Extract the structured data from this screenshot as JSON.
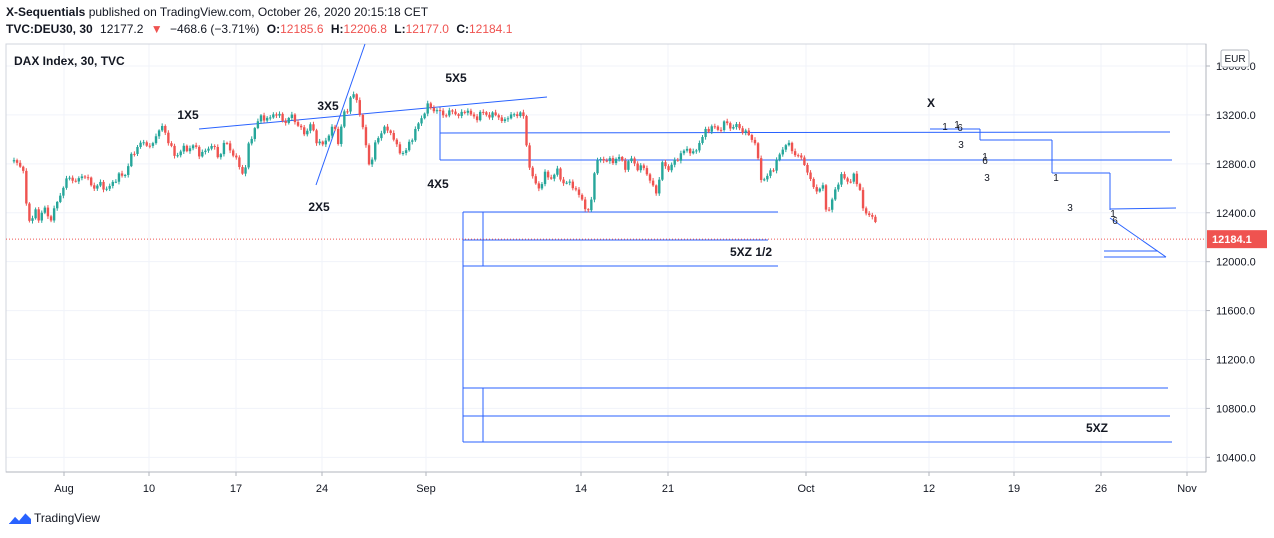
{
  "header": {
    "author": "X-Sequentials",
    "published": "published on TradingView.com, October 26, 2020 20:15:18 CET",
    "symbol": "TVC:DEU30, 30",
    "last": "12177.2",
    "arrow": "▼",
    "change": "−468.6 (−3.71%)",
    "o_label": "O:",
    "o_val": "12185.6",
    "h_label": "H:",
    "h_val": "12206.8",
    "l_label": "L:",
    "l_val": "12177.0",
    "c_label": "C:",
    "c_val": "12184.1"
  },
  "footer": {
    "brand": "TradingView"
  },
  "chart_data": {
    "type": "candlestick",
    "legend": "DAX Index, 30, TVC",
    "currency": "EUR",
    "price_axis": {
      "ticks": [
        13600,
        13200,
        12800,
        12400,
        12000,
        11600,
        11200,
        10800,
        10400
      ],
      "range": [
        10280,
        13780
      ]
    },
    "time_axis": {
      "labels": [
        "Aug",
        "10",
        "17",
        "24",
        "Sep",
        "14",
        "21",
        "Oct",
        "12",
        "19",
        "26",
        "Nov"
      ]
    },
    "last_price": {
      "value": 12184.1,
      "label": "12184.1",
      "color": "#ef5350"
    },
    "colors": {
      "up": "#26a69a",
      "down": "#ef5350",
      "lines": "#2962ff"
    },
    "grid": true,
    "price_path": [
      [
        -4.3,
        12820
      ],
      [
        -3.6,
        12810
      ],
      [
        -3.3,
        12720
      ],
      [
        -3.0,
        12430
      ],
      [
        -2.7,
        12300
      ],
      [
        -2.4,
        12420
      ],
      [
        -2.0,
        12350
      ],
      [
        -1.6,
        12450
      ],
      [
        -1.2,
        12330
      ],
      [
        -0.8,
        12420
      ],
      [
        -0.4,
        12520
      ],
      [
        0.0,
        12630
      ],
      [
        0.5,
        12700
      ],
      [
        1.0,
        12640
      ],
      [
        1.5,
        12720
      ],
      [
        2.0,
        12660
      ],
      [
        2.5,
        12600
      ],
      [
        3.0,
        12640
      ],
      [
        3.5,
        12580
      ],
      [
        4.0,
        12660
      ],
      [
        4.5,
        12700
      ],
      [
        5.0,
        12720
      ],
      [
        5.4,
        12850
      ],
      [
        6.0,
        12950
      ],
      [
        6.6,
        12980
      ],
      [
        7.1,
        12920
      ],
      [
        7.5,
        13060
      ],
      [
        8.0,
        13100
      ],
      [
        8.5,
        12980
      ],
      [
        9.0,
        12850
      ],
      [
        9.5,
        12920
      ],
      [
        10.0,
        12920
      ],
      [
        10.5,
        12950
      ],
      [
        11.0,
        12880
      ],
      [
        11.5,
        12900
      ],
      [
        12.0,
        12970
      ],
      [
        12.5,
        12840
      ],
      [
        13.0,
        12980
      ],
      [
        13.6,
        12900
      ],
      [
        14.2,
        12780
      ],
      [
        14.6,
        12700
      ],
      [
        15.0,
        12980
      ],
      [
        15.5,
        13100
      ],
      [
        16.0,
        13200
      ],
      [
        16.5,
        13150
      ],
      [
        17.0,
        13220
      ],
      [
        17.5,
        13180
      ],
      [
        18.0,
        13140
      ],
      [
        18.5,
        13200
      ],
      [
        19.0,
        13100
      ],
      [
        19.5,
        13050
      ],
      [
        20.0,
        13120
      ],
      [
        20.5,
        12980
      ],
      [
        21.0,
        12950
      ],
      [
        21.5,
        13060
      ],
      [
        22.0,
        13100
      ],
      [
        22.2,
        12970
      ],
      [
        22.3,
        13020
      ],
      [
        22.6,
        13190
      ],
      [
        23.0,
        13260
      ],
      [
        23.3,
        13380
      ],
      [
        23.7,
        13320
      ],
      [
        24.0,
        13200
      ],
      [
        24.4,
        12970
      ],
      [
        24.8,
        12760
      ],
      [
        25.2,
        12960
      ],
      [
        25.8,
        13090
      ],
      [
        26.5,
        13060
      ],
      [
        27.0,
        12920
      ],
      [
        27.6,
        12880
      ],
      [
        28.0,
        12980
      ],
      [
        28.5,
        13080
      ],
      [
        29.0,
        13190
      ],
      [
        29.5,
        13280
      ],
      [
        30.0,
        13240
      ],
      [
        30.5,
        13220
      ],
      [
        31.0,
        13200
      ],
      [
        31.5,
        13240
      ],
      [
        32.0,
        13180
      ],
      [
        32.5,
        13250
      ],
      [
        33.0,
        13190
      ],
      [
        33.5,
        13180
      ],
      [
        34.0,
        13230
      ],
      [
        34.5,
        13180
      ],
      [
        35.0,
        13220
      ],
      [
        35.5,
        13130
      ],
      [
        36.0,
        13200
      ],
      [
        36.5,
        13190
      ],
      [
        37.0,
        13230
      ],
      [
        37.3,
        13150
      ],
      [
        37.5,
        12880
      ],
      [
        38.0,
        12660
      ],
      [
        38.5,
        12600
      ],
      [
        39.0,
        12720
      ],
      [
        39.5,
        12680
      ],
      [
        40.0,
        12750
      ],
      [
        40.5,
        12620
      ],
      [
        41.0,
        12660
      ],
      [
        41.5,
        12560
      ],
      [
        42.0,
        12520
      ],
      [
        42.3,
        12380
      ],
      [
        42.6,
        12430
      ],
      [
        43.0,
        12780
      ],
      [
        43.5,
        12850
      ],
      [
        44.0,
        12820
      ],
      [
        44.5,
        12830
      ],
      [
        45.0,
        12850
      ],
      [
        45.5,
        12770
      ],
      [
        46.0,
        12850
      ],
      [
        46.5,
        12750
      ],
      [
        47.0,
        12780
      ],
      [
        47.5,
        12640
      ],
      [
        48.0,
        12570
      ],
      [
        48.5,
        12820
      ],
      [
        49.0,
        12750
      ],
      [
        49.5,
        12830
      ],
      [
        50.0,
        12880
      ],
      [
        50.5,
        12930
      ],
      [
        51.0,
        12870
      ],
      [
        51.5,
        12990
      ],
      [
        52.0,
        13070
      ],
      [
        52.5,
        13110
      ],
      [
        53.0,
        13070
      ],
      [
        53.5,
        13140
      ],
      [
        54.0,
        13100
      ],
      [
        54.5,
        13110
      ],
      [
        55.0,
        13070
      ],
      [
        55.5,
        13030
      ],
      [
        56.0,
        12970
      ],
      [
        56.2,
        12820
      ],
      [
        56.5,
        12660
      ],
      [
        57.0,
        12700
      ],
      [
        57.5,
        12780
      ],
      [
        58.0,
        12880
      ],
      [
        58.5,
        12980
      ],
      [
        59.0,
        12900
      ],
      [
        59.5,
        12860
      ],
      [
        60.0,
        12800
      ],
      [
        60.5,
        12640
      ],
      [
        61.0,
        12580
      ],
      [
        61.5,
        12610
      ],
      [
        61.8,
        12370
      ],
      [
        62.2,
        12500
      ],
      [
        62.6,
        12640
      ],
      [
        63.0,
        12700
      ],
      [
        63.6,
        12650
      ],
      [
        64.0,
        12700
      ],
      [
        64.5,
        12580
      ],
      [
        64.8,
        12350
      ],
      [
        65.1,
        12420
      ],
      [
        65.4,
        12370
      ],
      [
        65.7,
        12310
      ],
      [
        65.9,
        12190
      ]
    ],
    "annotations": [
      {
        "text": "1X5"
      },
      {
        "text": "2X5"
      },
      {
        "text": "3X5"
      },
      {
        "text": "4X5"
      },
      {
        "text": "5X5"
      },
      {
        "text": "X"
      },
      {
        "text": "5XZ 1/2"
      },
      {
        "text": "5XZ"
      }
    ],
    "count_marks": [
      {
        "text": "1"
      },
      {
        "text": "3"
      },
      {
        "text": "1"
      },
      {
        "text": "6"
      },
      {
        "text": "1"
      },
      {
        "text": "6"
      },
      {
        "text": "3"
      },
      {
        "text": "1"
      },
      {
        "text": "3"
      },
      {
        "text": "1"
      },
      {
        "text": "6"
      }
    ]
  }
}
